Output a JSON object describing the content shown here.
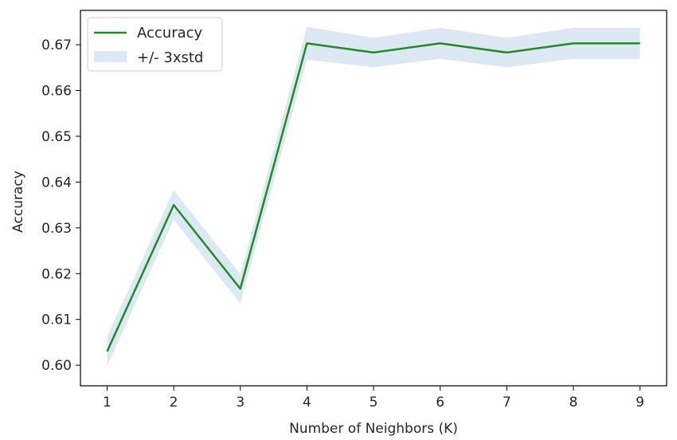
{
  "chart_data": {
    "type": "line",
    "xlabel": "Number of Neighbors (K)",
    "ylabel": "Accuracy",
    "x": [
      1,
      2,
      3,
      4,
      5,
      6,
      7,
      8,
      9
    ],
    "xticks": [
      "1",
      "2",
      "3",
      "4",
      "5",
      "6",
      "7",
      "8",
      "9"
    ],
    "yticks": [
      0.6,
      0.61,
      0.62,
      0.63,
      0.64,
      0.65,
      0.66,
      0.67
    ],
    "ytick_labels": [
      "0.60",
      "0.61",
      "0.62",
      "0.63",
      "0.64",
      "0.65",
      "0.66",
      "0.67"
    ],
    "xlim": [
      0.6,
      9.4
    ],
    "ylim": [
      0.5955,
      0.6775
    ],
    "grid": false,
    "legend_position": "top-left",
    "series": [
      {
        "name": "Accuracy",
        "color": "#228b22",
        "values": [
          0.603,
          0.635,
          0.6167,
          0.6703,
          0.6683,
          0.6703,
          0.6683,
          0.6703,
          0.6703
        ]
      }
    ],
    "band": {
      "name": "+/- 3xstd",
      "color": "#dce8f3",
      "lower": [
        0.5998,
        0.6318,
        0.6135,
        0.6667,
        0.6651,
        0.6669,
        0.6651,
        0.6669,
        0.6669
      ],
      "upper": [
        0.6062,
        0.6382,
        0.6199,
        0.6739,
        0.6715,
        0.6737,
        0.6715,
        0.6737,
        0.6737
      ]
    }
  }
}
